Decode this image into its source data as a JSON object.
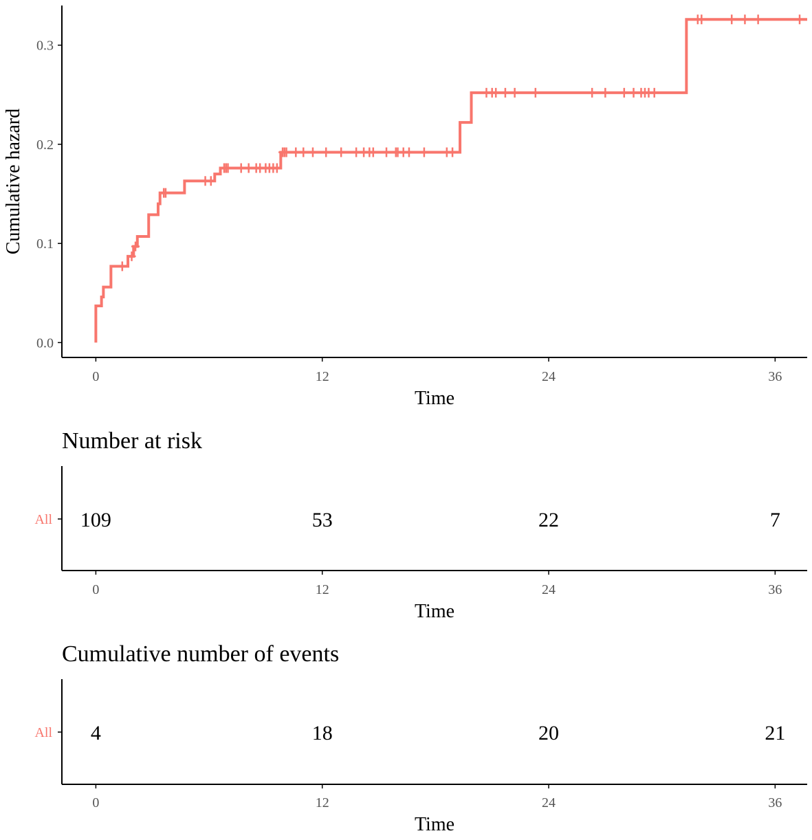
{
  "colors": {
    "series": "#F8766D",
    "axis": "#000000",
    "tick_text": "#555555"
  },
  "chart_data": [
    {
      "type": "line",
      "style": "step",
      "xlabel": "Time",
      "ylabel": "Cumulative hazard",
      "xlim": [
        -1.8,
        37.7
      ],
      "ylim": [
        -0.015,
        0.34
      ],
      "xticks": [
        0,
        12,
        24,
        36
      ],
      "yticks": [
        0.0,
        0.1,
        0.2,
        0.3
      ],
      "ytick_labels": [
        "0.0",
        "0.1",
        "0.2",
        "0.3"
      ],
      "series": [
        {
          "name": "All",
          "steps": [
            [
              0.0,
              0.0
            ],
            [
              0.0,
              0.037
            ],
            [
              0.3,
              0.046
            ],
            [
              0.4,
              0.056
            ],
            [
              0.8,
              0.066
            ],
            [
              0.8,
              0.077
            ],
            [
              1.7,
              0.087
            ],
            [
              2.0,
              0.097
            ],
            [
              2.2,
              0.107
            ],
            [
              2.8,
              0.118
            ],
            [
              2.8,
              0.129
            ],
            [
              3.3,
              0.14
            ],
            [
              3.4,
              0.151
            ],
            [
              4.7,
              0.163
            ],
            [
              6.3,
              0.17
            ],
            [
              6.6,
              0.176
            ],
            [
              9.8,
              0.184
            ],
            [
              9.8,
              0.192
            ],
            [
              19.3,
              0.208
            ],
            [
              19.3,
              0.222
            ],
            [
              19.9,
              0.24
            ],
            [
              19.9,
              0.252
            ],
            [
              31.3,
              0.326
            ]
          ],
          "end_x": 37.7,
          "censor_times": [
            1.4,
            1.9,
            2.1,
            3.6,
            3.7,
            5.8,
            6.1,
            6.8,
            6.9,
            7.0,
            7.7,
            8.1,
            8.5,
            8.7,
            9.0,
            9.2,
            9.4,
            9.6,
            9.9,
            10.0,
            10.1,
            10.6,
            11.0,
            11.5,
            12.2,
            13.0,
            13.8,
            14.2,
            14.5,
            14.7,
            15.4,
            15.9,
            16.0,
            16.3,
            16.6,
            17.4,
            18.6,
            18.9,
            20.7,
            21.0,
            21.2,
            21.7,
            22.2,
            23.3,
            26.3,
            27.0,
            28.0,
            28.5,
            28.9,
            29.1,
            29.3,
            29.6,
            31.9,
            32.1,
            33.7,
            34.4,
            35.1,
            37.3
          ]
        }
      ]
    },
    {
      "type": "table",
      "title": "Number at risk",
      "xlabel": "Time",
      "xticks": [
        0,
        12,
        24,
        36
      ],
      "rows": [
        {
          "label": "All",
          "times": [
            0,
            12,
            24,
            36
          ],
          "values": [
            "109",
            "53",
            "22",
            "7"
          ]
        }
      ]
    },
    {
      "type": "table",
      "title": "Cumulative number of events",
      "xlabel": "Time",
      "xticks": [
        0,
        12,
        24,
        36
      ],
      "rows": [
        {
          "label": "All",
          "times": [
            0,
            12,
            24,
            36
          ],
          "values": [
            "4",
            "18",
            "20",
            "21"
          ]
        }
      ]
    }
  ]
}
